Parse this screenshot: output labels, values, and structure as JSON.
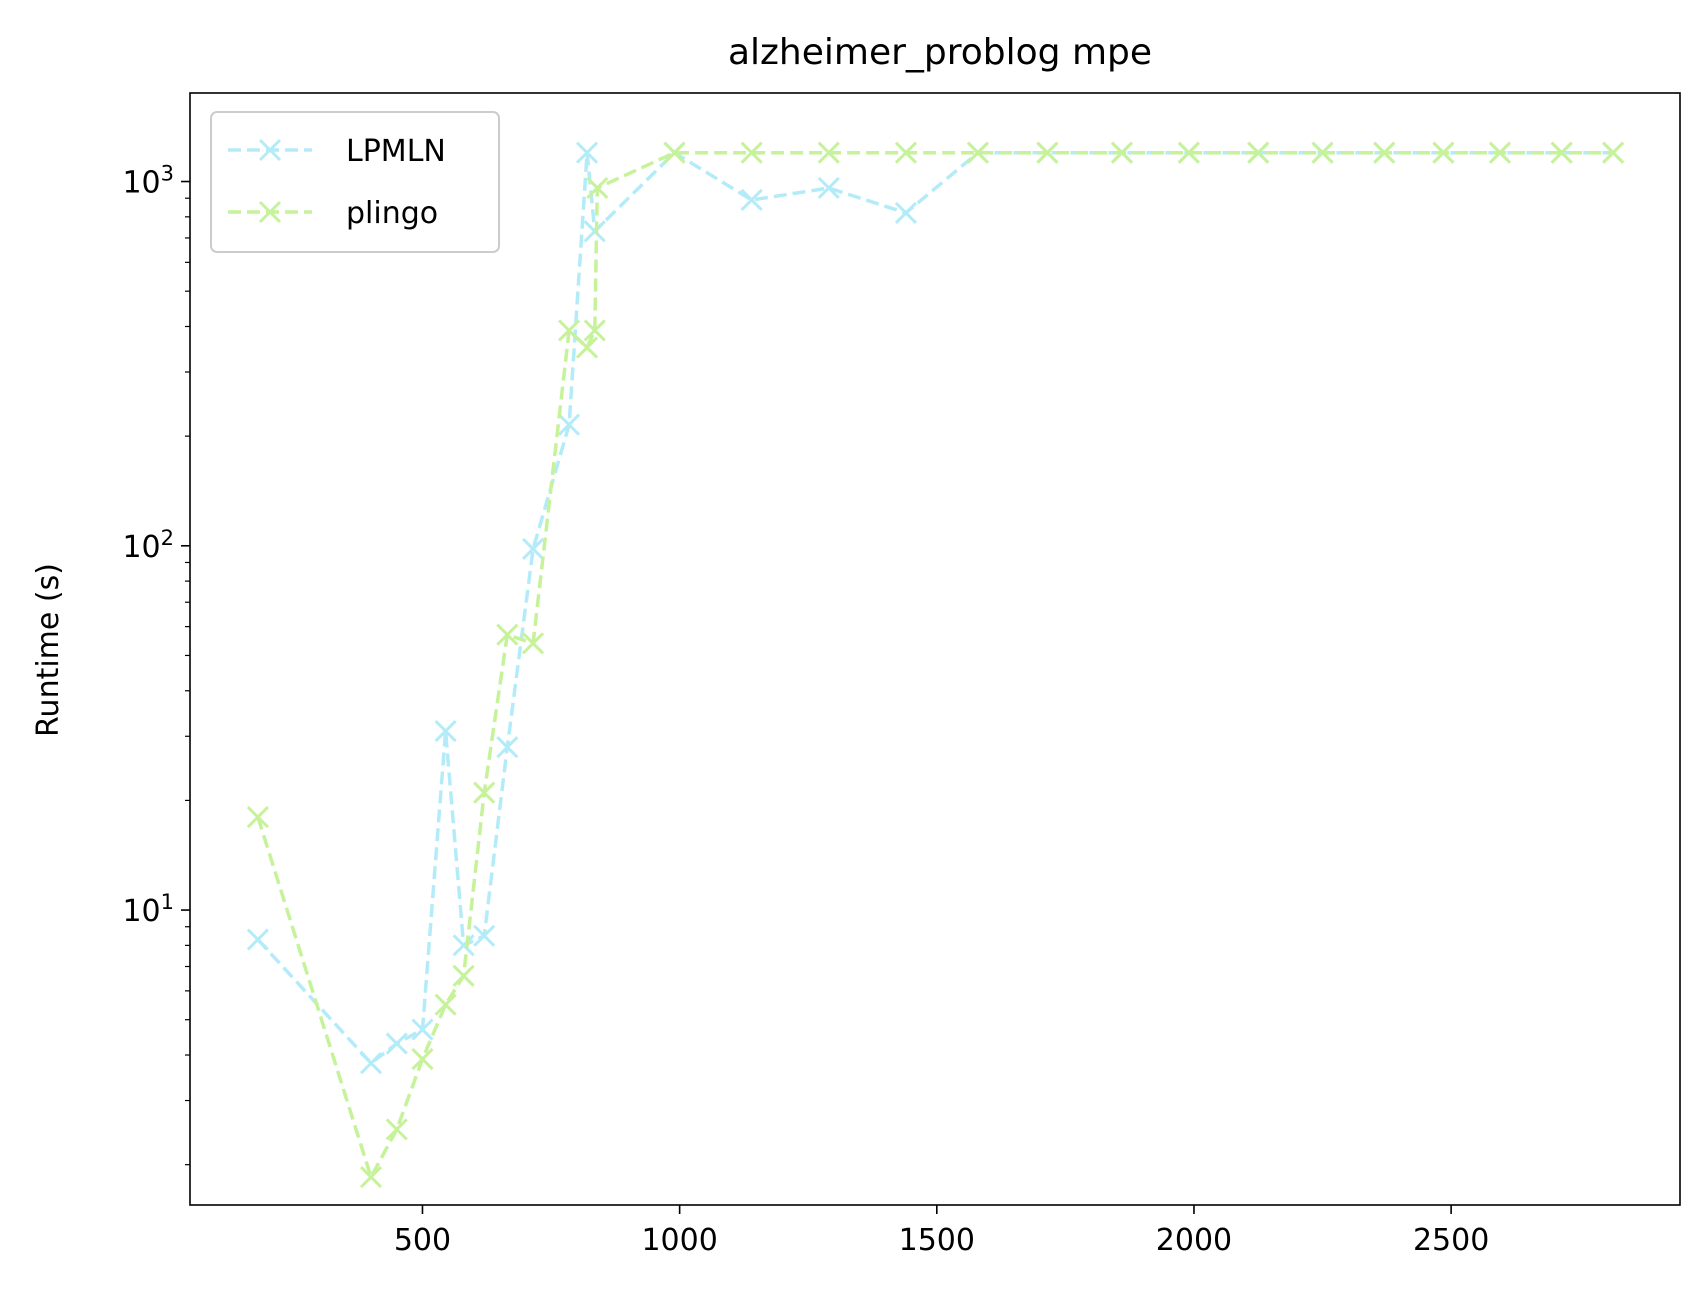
{
  "chart_data": {
    "type": "line",
    "title": "alzheimer_problog mpe",
    "xlabel": "",
    "ylabel": "Runtime (s)",
    "xlim": [
      48,
      2945
    ],
    "xticks": [
      500,
      1000,
      1500,
      2000,
      2500
    ],
    "ylog": true,
    "ylim": [
      1.55,
      1750
    ],
    "yticks": [
      {
        "value": 10,
        "base": "10",
        "exp": "1"
      },
      {
        "value": 100,
        "base": "10",
        "exp": "2"
      },
      {
        "value": 1000,
        "base": "10",
        "exp": "3"
      }
    ],
    "grid": false,
    "legend_position": "upper left",
    "series": [
      {
        "name": "LPMLN",
        "color": "#b3ecf8",
        "marker": "x",
        "linestyle": "dashed",
        "points": [
          [
            180,
            8.3
          ],
          [
            400,
            3.8
          ],
          [
            450,
            4.3
          ],
          [
            500,
            4.7
          ],
          [
            545,
            31
          ],
          [
            580,
            8.0
          ],
          [
            620,
            8.5
          ],
          [
            665,
            28
          ],
          [
            715,
            98
          ],
          [
            785,
            215
          ],
          [
            820,
            1200
          ],
          [
            835,
            730
          ],
          [
            990,
            1200
          ],
          [
            1140,
            890
          ],
          [
            1290,
            960
          ],
          [
            1440,
            820
          ],
          [
            1580,
            1200
          ],
          [
            1715,
            1200
          ],
          [
            1860,
            1200
          ],
          [
            1990,
            1200
          ],
          [
            2125,
            1200
          ],
          [
            2250,
            1200
          ],
          [
            2370,
            1200
          ],
          [
            2485,
            1200
          ],
          [
            2595,
            1200
          ],
          [
            2715,
            1200
          ],
          [
            2815,
            1200
          ]
        ]
      },
      {
        "name": "plingo",
        "color": "#c6f29a",
        "marker": "x",
        "linestyle": "dashed",
        "points": [
          [
            180,
            18
          ],
          [
            400,
            1.85
          ],
          [
            450,
            2.5
          ],
          [
            500,
            3.9
          ],
          [
            545,
            5.5
          ],
          [
            580,
            6.6
          ],
          [
            620,
            21
          ],
          [
            665,
            57
          ],
          [
            715,
            54
          ],
          [
            785,
            390
          ],
          [
            820,
            350
          ],
          [
            835,
            390
          ],
          [
            840,
            960
          ],
          [
            990,
            1200
          ],
          [
            1140,
            1200
          ],
          [
            1290,
            1200
          ],
          [
            1440,
            1200
          ],
          [
            1580,
            1200
          ],
          [
            1715,
            1200
          ],
          [
            1860,
            1200
          ],
          [
            1990,
            1200
          ],
          [
            2125,
            1200
          ],
          [
            2250,
            1200
          ],
          [
            2370,
            1200
          ],
          [
            2485,
            1200
          ],
          [
            2595,
            1200
          ],
          [
            2715,
            1200
          ],
          [
            2815,
            1200
          ]
        ]
      }
    ]
  }
}
